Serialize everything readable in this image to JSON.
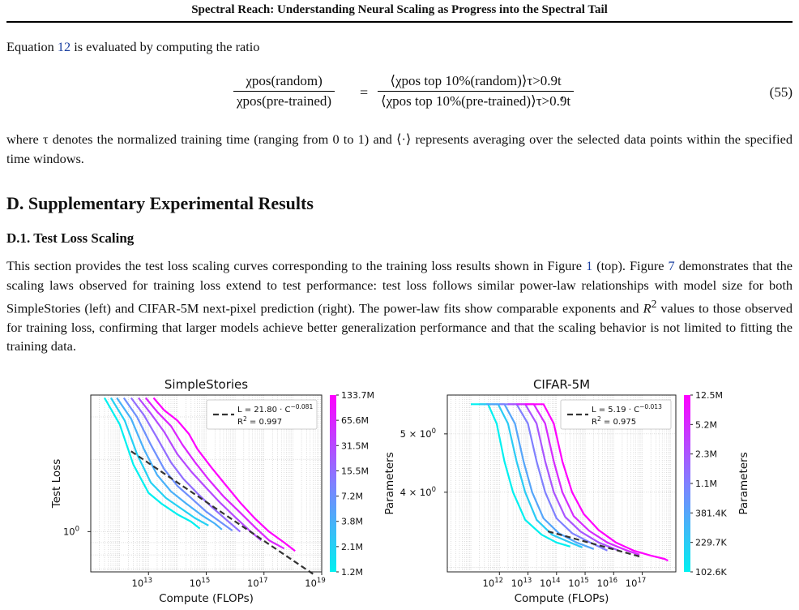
{
  "header": {
    "running_title": "Spectral Reach: Understanding Neural Scaling as Progress into the Spectral Tail"
  },
  "intro": {
    "pre": "Equation ",
    "ref": "12",
    "post": " is evaluated by computing the ratio"
  },
  "equation": {
    "lhs_num": "χpos(random)",
    "lhs_den": "χpos(pre-trained)",
    "rhs_num": "⟨χpos top 10%(random)⟩τ>0.9t",
    "rhs_den": "⟨χpos top 10%(pre-trained)⟩τ>0.9t",
    "number": "(55)"
  },
  "where_text": "where τ denotes the normalized training time (ranging from 0 to 1) and ⟨·⟩ represents averaging over the selected data points within the specified time windows.",
  "section_title": "D. Supplementary Experimental Results",
  "subsection_title": "D.1. Test Loss Scaling",
  "body": {
    "p1": "This section provides the test loss scaling curves corresponding to the training loss results shown in Figure ",
    "ref1": "1",
    "p2": " (top). Figure ",
    "ref2": "7",
    "p3": " demonstrates that the scaling laws observed for training loss extend to test performance: test loss follows similar power-law relationships with model size for both SimpleStories (left) and CIFAR-5M next-pixel prediction (right). The power-law fits show comparable exponents and ",
    "r2": "R",
    "p4": " values to those observed for training loss, confirming that larger models achieve better generalization performance and that the scaling behavior is not limited to fitting the training data."
  },
  "colors": {
    "cmap_low": "#00f0f0",
    "cmap_mid": "#8080ff",
    "cmap_high": "#ff00ff",
    "fit": "#333333",
    "link": "#1a3fa0"
  },
  "chart_data": [
    {
      "type": "line",
      "title": "SimpleStories",
      "xlabel": "Compute (FLOPs)",
      "ylabel": "Test Loss",
      "xscale": "log",
      "yscale": "log",
      "xlim": [
        100000000000.0,
        1e+19
      ],
      "ylim": [
        0.68,
        3.7
      ],
      "xticks": [
        {
          "v": 10000000000000.0,
          "e": "13"
        },
        {
          "v": 1000000000000000.0,
          "e": "15"
        },
        {
          "v": 1e+17,
          "e": "17"
        },
        {
          "v": 1e+19,
          "e": "19"
        }
      ],
      "yticks": [
        {
          "v": 1.0,
          "label": "10",
          "e": "0"
        }
      ],
      "legend": {
        "position": "upper right",
        "line1": "L = 21.80 · C",
        "exp1": "−0.081",
        "line2": "R",
        "sup2": "2",
        "val2": " = 0.997"
      },
      "fit": {
        "coef": 21.8,
        "exp": -0.081,
        "x": [
          2500000000000.0,
          5e+18
        ]
      },
      "colorbar": {
        "label": "Parameters",
        "ticks": [
          "1.2M",
          "2.1M",
          "3.8M",
          "7.2M",
          "15.5M",
          "31.5M",
          "65.6M",
          "133.7M"
        ]
      },
      "series": [
        {
          "params": "1.2M",
          "cfrac": 0.0,
          "points": [
            [
              300000000000.0,
              3.6
            ],
            [
              1000000000000.0,
              2.8
            ],
            [
              3000000000000.0,
              1.9
            ],
            [
              10000000000000.0,
              1.45
            ],
            [
              30000000000000.0,
              1.3
            ],
            [
              100000000000000.0,
              1.18
            ],
            [
              300000000000000.0,
              1.1
            ],
            [
              600000000000000.0,
              1.03
            ]
          ]
        },
        {
          "params": "2.1M",
          "cfrac": 0.143,
          "points": [
            [
              500000000000.0,
              3.6
            ],
            [
              1500000000000.0,
              2.9
            ],
            [
              4000000000000.0,
              2.1
            ],
            [
              12000000000000.0,
              1.6
            ],
            [
              40000000000000.0,
              1.38
            ],
            [
              120000000000000.0,
              1.26
            ],
            [
              400000000000000.0,
              1.14
            ],
            [
              1200000000000000.0,
              1.06
            ]
          ]
        },
        {
          "params": "3.8M",
          "cfrac": 0.286,
          "points": [
            [
              800000000000.0,
              3.6
            ],
            [
              2500000000000.0,
              2.95
            ],
            [
              7000000000000.0,
              2.2
            ],
            [
              20000000000000.0,
              1.72
            ],
            [
              60000000000000.0,
              1.47
            ],
            [
              200000000000000.0,
              1.31
            ],
            [
              700000000000000.0,
              1.17
            ],
            [
              2000000000000000.0,
              1.08
            ],
            [
              3500000000000000.0,
              1.02
            ]
          ]
        },
        {
          "params": "7.2M",
          "cfrac": 0.429,
          "points": [
            [
              1400000000000.0,
              3.6
            ],
            [
              4000000000000.0,
              3.0
            ],
            [
              12000000000000.0,
              2.3
            ],
            [
              35000000000000.0,
              1.82
            ],
            [
              100000000000000.0,
              1.55
            ],
            [
              300000000000000.0,
              1.38
            ],
            [
              1000000000000000.0,
              1.21
            ],
            [
              3000000000000000.0,
              1.1
            ],
            [
              8000000000000000.0,
              1.01
            ]
          ]
        },
        {
          "params": "15.5M",
          "cfrac": 0.571,
          "points": [
            [
              2500000000000.0,
              3.6
            ],
            [
              7000000000000.0,
              3.05
            ],
            [
              20000000000000.0,
              2.45
            ],
            [
              60000000000000.0,
              1.94
            ],
            [
              160000000000000.0,
              1.66
            ],
            [
              500000000000000.0,
              1.44
            ],
            [
              1500000000000000.0,
              1.27
            ],
            [
              5000000000000000.0,
              1.12
            ],
            [
              1.5e+16,
              1.0
            ]
          ]
        },
        {
          "params": "31.5M",
          "cfrac": 0.714,
          "points": [
            [
              4500000000000.0,
              3.6
            ],
            [
              12000000000000.0,
              3.1
            ],
            [
              35000000000000.0,
              2.6
            ],
            [
              100000000000000.0,
              2.1
            ],
            [
              300000000000000.0,
              1.78
            ],
            [
              1000000000000000.0,
              1.52
            ],
            [
              3000000000000000.0,
              1.32
            ],
            [
              1e+16,
              1.15
            ],
            [
              3.5e+16,
              1.0
            ],
            [
              8e+16,
              0.92
            ]
          ]
        },
        {
          "params": "65.6M",
          "cfrac": 0.857,
          "points": [
            [
              8000000000000.0,
              3.6
            ],
            [
              20000000000000.0,
              3.15
            ],
            [
              60000000000000.0,
              2.75
            ],
            [
              150000000000000.0,
              2.3
            ],
            [
              400000000000000.0,
              1.95
            ],
            [
              1200000000000000.0,
              1.65
            ],
            [
              4000000000000000.0,
              1.4
            ],
            [
              1.5e+16,
              1.2
            ],
            [
              5e+16,
              1.04
            ],
            [
              1.5e+17,
              0.92
            ],
            [
              5e+17,
              0.85
            ]
          ]
        },
        {
          "params": "133.7M",
          "cfrac": 1.0,
          "points": [
            [
              15000000000000.0,
              3.6
            ],
            [
              35000000000000.0,
              3.2
            ],
            [
              100000000000000.0,
              2.9
            ],
            [
              250000000000000.0,
              2.55
            ],
            [
              500000000000000.0,
              2.2
            ],
            [
              1500000000000000.0,
              1.85
            ],
            [
              5000000000000000.0,
              1.55
            ],
            [
              1.5e+16,
              1.32
            ],
            [
              5e+16,
              1.13
            ],
            [
              1.5e+17,
              1.0
            ],
            [
              5e+17,
              0.9
            ],
            [
              1.2e+18,
              0.83
            ]
          ]
        }
      ]
    },
    {
      "type": "line",
      "title": "CIFAR-5M",
      "xlabel": "Compute (FLOPs)",
      "ylabel": "",
      "xscale": "log",
      "yscale": "log",
      "xlim": [
        15000000000.0,
        1.5e+18
      ],
      "ylim": [
        2.95,
        5.8
      ],
      "xticks": [
        {
          "v": 1000000000000.0,
          "e": "12"
        },
        {
          "v": 10000000000000.0,
          "e": "13"
        },
        {
          "v": 100000000000000.0,
          "e": "14"
        },
        {
          "v": 1000000000000000.0,
          "e": "15"
        },
        {
          "v": 1e+16,
          "e": "16"
        },
        {
          "v": 1e+17,
          "e": "17"
        }
      ],
      "yticks": [
        {
          "v": 4.0,
          "label": "4 × 10",
          "e": "0"
        },
        {
          "v": 5.0,
          "label": "5 × 10",
          "e": "0"
        }
      ],
      "legend": {
        "position": "upper right",
        "line1": "L = 5.19 · C",
        "exp1": "−0.013",
        "line2": "R",
        "sup2": "2",
        "val2": " = 0.975"
      },
      "fit": {
        "coef": 5.19,
        "exp": -0.013,
        "x": [
          50000000000000.0,
          1e+17
        ]
      },
      "colorbar": {
        "label": "Parameters",
        "ticks": [
          "102.6K",
          "229.7K",
          "381.4K",
          "1.1M",
          "2.3M",
          "5.2M",
          "12.5M"
        ]
      },
      "series": [
        {
          "params": "102.6K",
          "cfrac": 0.0,
          "points": [
            [
              100000000000.0,
              5.6
            ],
            [
              400000000000.0,
              5.6
            ],
            [
              800000000000.0,
              5.2
            ],
            [
              1500000000000.0,
              4.5
            ],
            [
              3000000000000.0,
              4.0
            ],
            [
              8000000000000.0,
              3.6
            ],
            [
              30000000000000.0,
              3.4
            ],
            [
              100000000000000.0,
              3.3
            ],
            [
              300000000000000.0,
              3.25
            ]
          ]
        },
        {
          "params": "229.7K",
          "cfrac": 0.167,
          "points": [
            [
              200000000000.0,
              5.6
            ],
            [
              900000000000.0,
              5.6
            ],
            [
              2000000000000.0,
              5.2
            ],
            [
              4000000000000.0,
              4.5
            ],
            [
              8000000000000.0,
              4.0
            ],
            [
              20000000000000.0,
              3.6
            ],
            [
              70000000000000.0,
              3.4
            ],
            [
              300000000000000.0,
              3.3
            ],
            [
              800000000000000.0,
              3.24
            ]
          ]
        },
        {
          "params": "381.4K",
          "cfrac": 0.333,
          "points": [
            [
              350000000000.0,
              5.6
            ],
            [
              1500000000000.0,
              5.6
            ],
            [
              3500000000000.0,
              5.2
            ],
            [
              7000000000000.0,
              4.5
            ],
            [
              14000000000000.0,
              4.0
            ],
            [
              35000000000000.0,
              3.62
            ],
            [
              120000000000000.0,
              3.42
            ],
            [
              500000000000000.0,
              3.3
            ],
            [
              2000000000000000.0,
              3.22
            ]
          ]
        },
        {
          "params": "1.1M",
          "cfrac": 0.5,
          "points": [
            [
              1000000000000.0,
              5.6
            ],
            [
              4000000000000.0,
              5.6
            ],
            [
              10000000000000.0,
              5.2
            ],
            [
              20000000000000.0,
              4.5
            ],
            [
              40000000000000.0,
              4.0
            ],
            [
              100000000000000.0,
              3.62
            ],
            [
              350000000000000.0,
              3.42
            ],
            [
              1500000000000000.0,
              3.3
            ],
            [
              6000000000000000.0,
              3.2
            ]
          ]
        },
        {
          "params": "2.3M",
          "cfrac": 0.667,
          "points": [
            [
              2000000000000.0,
              5.6
            ],
            [
              8000000000000.0,
              5.6
            ],
            [
              20000000000000.0,
              5.2
            ],
            [
              40000000000000.0,
              4.5
            ],
            [
              80000000000000.0,
              4.0
            ],
            [
              200000000000000.0,
              3.64
            ],
            [
              700000000000000.0,
              3.44
            ],
            [
              3000000000000000.0,
              3.3
            ],
            [
              1.5e+16,
              3.2
            ]
          ]
        },
        {
          "params": "5.2M",
          "cfrac": 0.833,
          "points": [
            [
              4000000000000.0,
              5.6
            ],
            [
              16000000000000.0,
              5.6
            ],
            [
              40000000000000.0,
              5.2
            ],
            [
              80000000000000.0,
              4.5
            ],
            [
              160000000000000.0,
              4.0
            ],
            [
              400000000000000.0,
              3.65
            ],
            [
              1400000000000000.0,
              3.45
            ],
            [
              6000000000000000.0,
              3.3
            ],
            [
              3e+16,
              3.2
            ],
            [
              8e+16,
              3.15
            ]
          ]
        },
        {
          "params": "12.5M",
          "cfrac": 1.0,
          "points": [
            [
              8000000000000.0,
              5.6
            ],
            [
              35000000000000.0,
              5.6
            ],
            [
              80000000000000.0,
              5.2
            ],
            [
              160000000000000.0,
              4.5
            ],
            [
              350000000000000.0,
              4.0
            ],
            [
              900000000000000.0,
              3.68
            ],
            [
              3000000000000000.0,
              3.46
            ],
            [
              1.2e+16,
              3.3
            ],
            [
              5e+16,
              3.2
            ],
            [
              2e+17,
              3.14
            ],
            [
              6e+17,
              3.1
            ],
            [
              8e+17,
              3.08
            ]
          ]
        }
      ]
    }
  ]
}
